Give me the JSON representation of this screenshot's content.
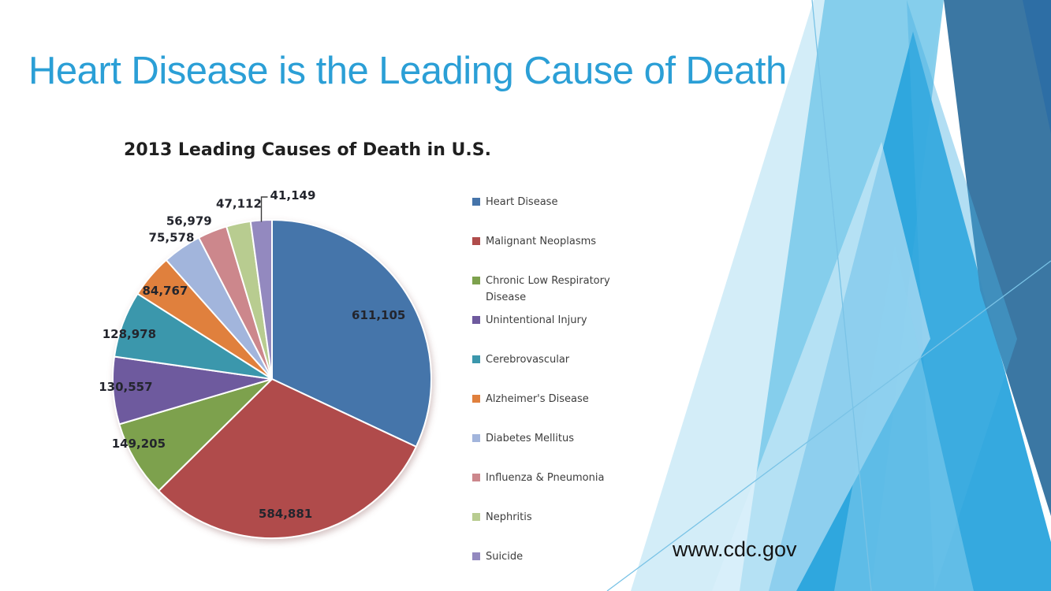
{
  "slide": {
    "title": "Heart Disease is the Leading Cause of Death",
    "title_color": "#2b9fd6",
    "footer_link": "www.cdc.gov"
  },
  "chart_data": {
    "type": "pie",
    "title": "2013 Leading Causes of Death in U.S.",
    "legend_position": "right",
    "direction": "clockwise",
    "start_angle_deg": 0,
    "categories": [
      "Heart Disease",
      "Malignant Neoplasms",
      "Chronic Low Respiratory Disease",
      "Unintentional Injury",
      "Cerebrovascular",
      "Alzheimer's Disease",
      "Diabetes Mellitus",
      "Influenza & Pneumonia",
      "Nephritis",
      "Suicide"
    ],
    "values": [
      611105,
      584881,
      149205,
      130557,
      128978,
      84767,
      75578,
      56979,
      47112,
      41149
    ],
    "labels": [
      "611,105",
      "584,881",
      "149,205",
      "130,557",
      "128,978",
      "84,767",
      "75,578",
      "56,979",
      "47,112",
      "41,149"
    ],
    "colors": [
      "#4574aa",
      "#b04c4b",
      "#7da14d",
      "#6e5a9e",
      "#3b97ac",
      "#e0803d",
      "#a2b5dc",
      "#cc878c",
      "#b8cc90",
      "#9389bf"
    ],
    "label_color": "#23252d",
    "separator_color": "#ffffff"
  },
  "background": {
    "theme": "facet-blue-triangles",
    "accent_dark": "#33719f",
    "accent_bright": "#2aa4dd",
    "accent_light": "#7ecbea",
    "accent_pale": "#ddf1fb"
  }
}
